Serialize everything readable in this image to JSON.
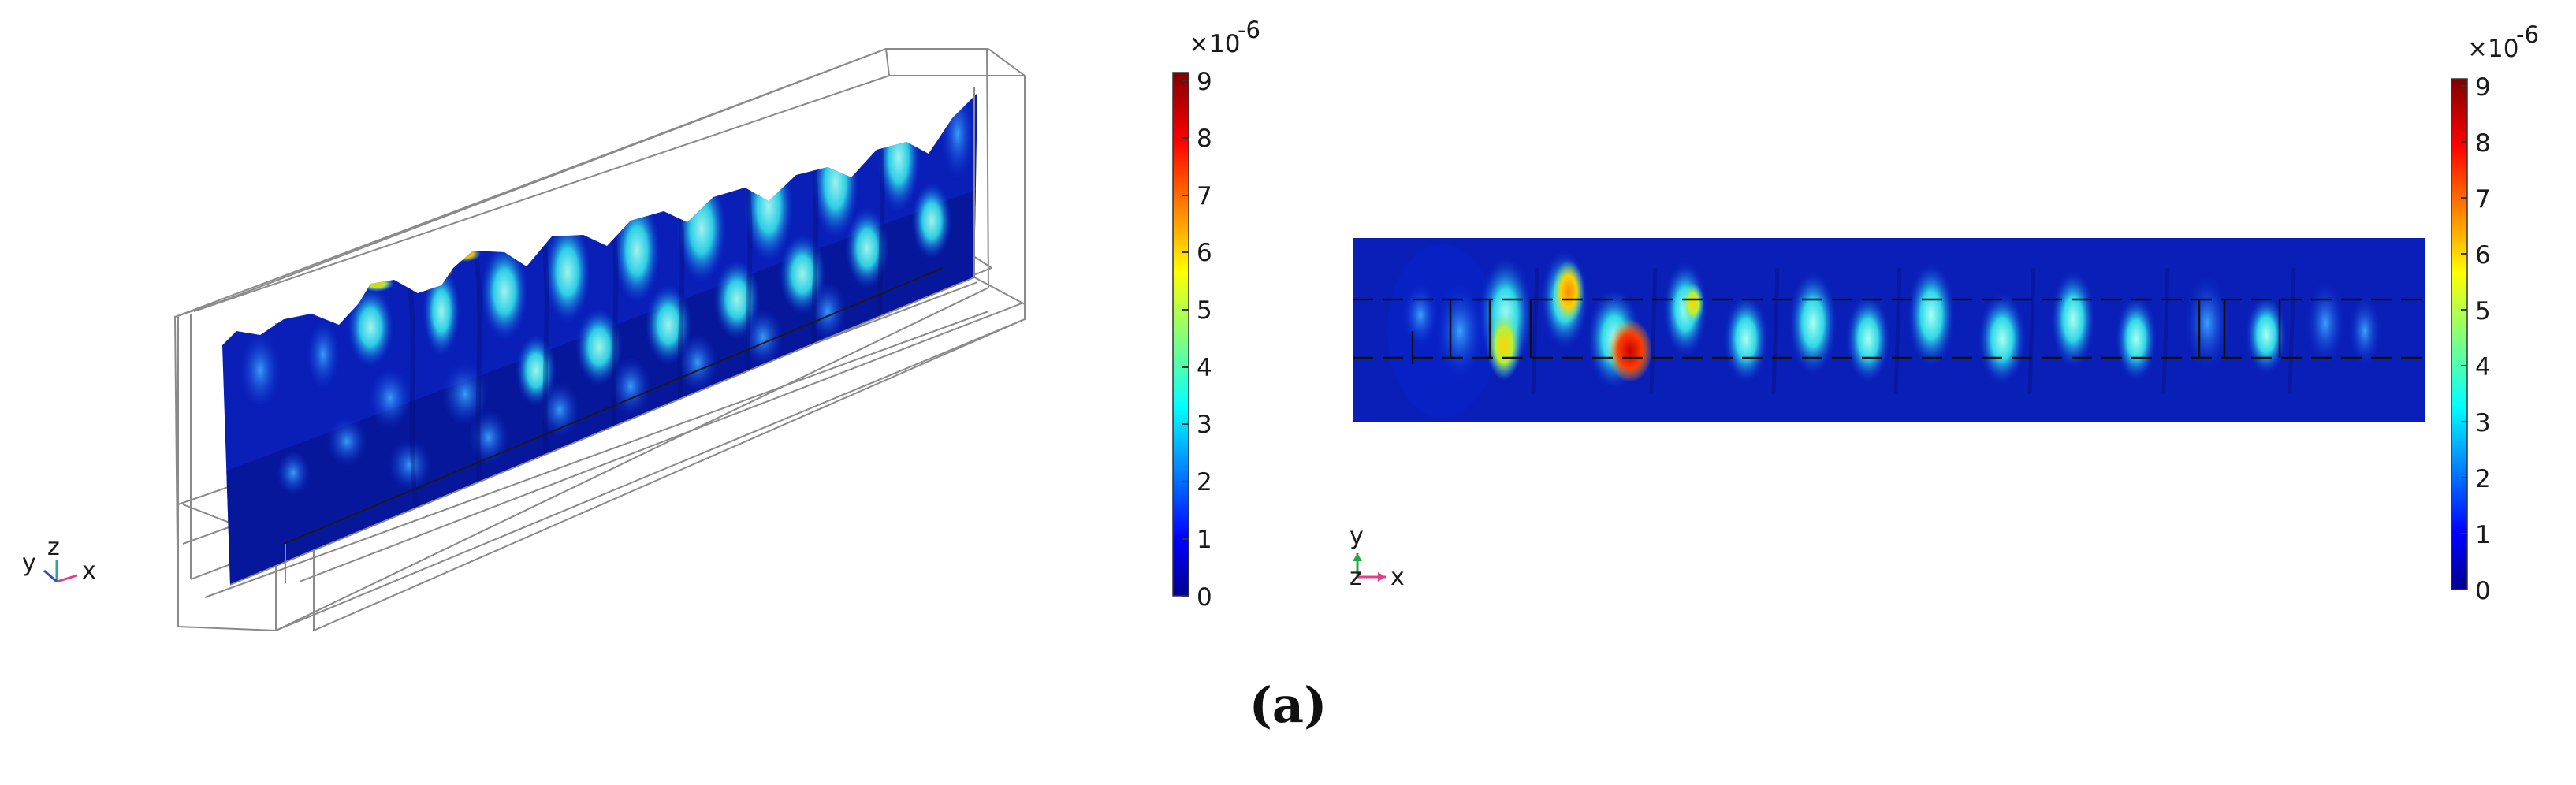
{
  "caption": "(a)",
  "colorbar_left": {
    "multiplier": "×10",
    "exponent": "-6",
    "ticks": [
      "0",
      "1",
      "2",
      "3",
      "4",
      "5",
      "6",
      "7",
      "8",
      "9"
    ]
  },
  "colorbar_right": {
    "multiplier": "×10",
    "exponent": "-6",
    "ticks": [
      "0",
      "1",
      "2",
      "3",
      "4",
      "5",
      "6",
      "7",
      "8",
      "9"
    ]
  },
  "triad_left": {
    "y": "y",
    "z": "z",
    "x": "x"
  },
  "triad_right": {
    "y": "y",
    "z": "z",
    "x": "x"
  },
  "colors": {
    "jet_low": "#00008f",
    "jet_mid": "#00ffff",
    "jet_high": "#7f0000",
    "frame": "#8a8a8a"
  }
}
